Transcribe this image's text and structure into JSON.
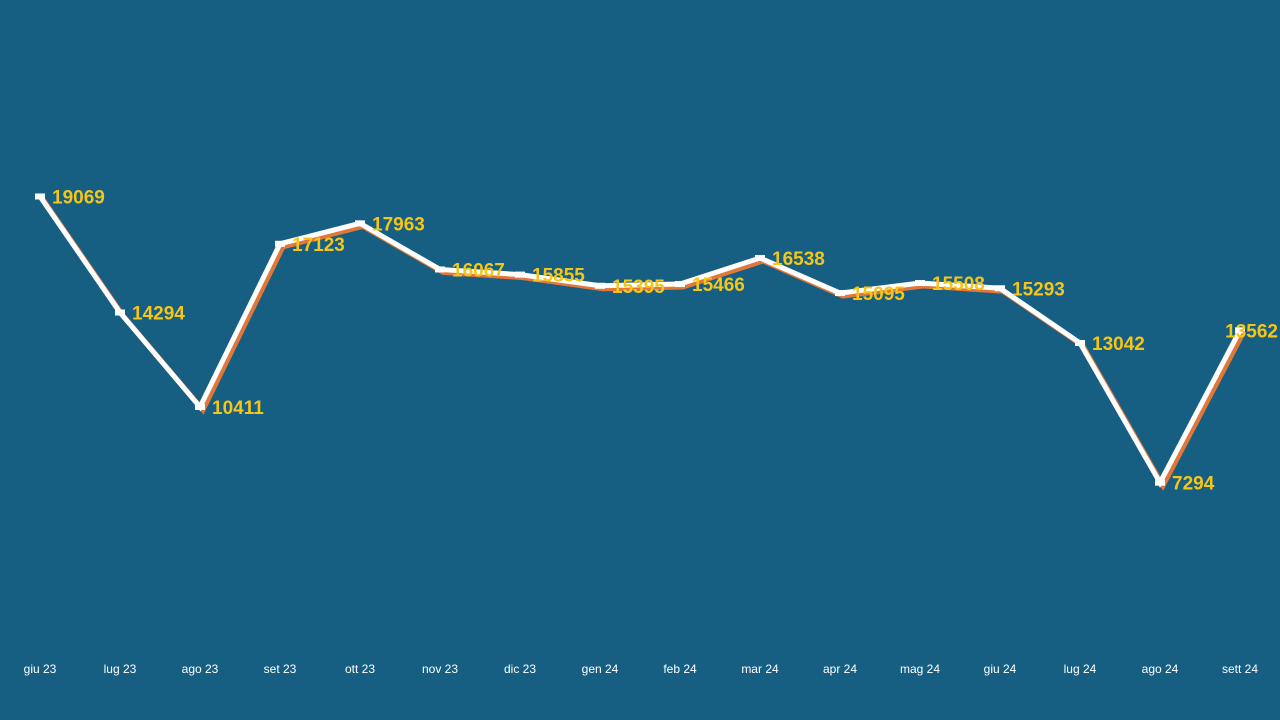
{
  "chart_data": {
    "type": "line",
    "title": "",
    "xlabel": "",
    "ylabel": "",
    "categories": [
      "giu 23",
      "lug 23",
      "ago 23",
      "set 23",
      "ott 23",
      "nov 23",
      "dic 23",
      "gen 24",
      "feb 24",
      "mar 24",
      "apr 24",
      "mag 24",
      "giu 24",
      "lug 24",
      "ago 24",
      "sett 24"
    ],
    "series": [
      {
        "values": [
          19069,
          14294,
          10411,
          17123,
          17963,
          16067,
          15855,
          15395,
          15466,
          16538,
          15095,
          15508,
          15293,
          13042,
          7294,
          13562
        ]
      }
    ],
    "ylim": [
      0,
      26000
    ],
    "grid": false,
    "legend": "none",
    "colors": {
      "background": "#165f82",
      "line": "#ffffff",
      "line_shadow": "#e2773a",
      "data_label": "#f5c518",
      "tick_label": "#ffffff"
    }
  }
}
